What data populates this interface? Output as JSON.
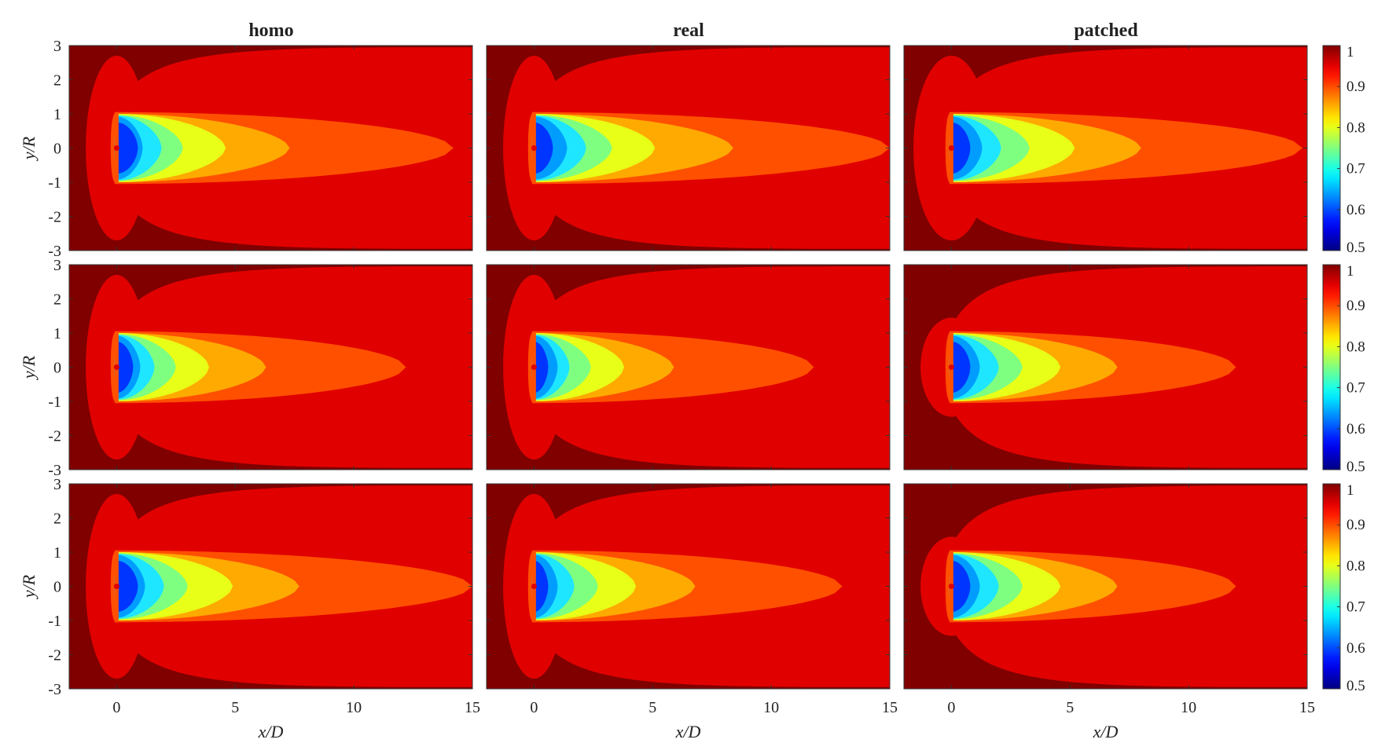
{
  "figure": {
    "columns": [
      {
        "title": "homo"
      },
      {
        "title": "real"
      },
      {
        "title": "patched"
      }
    ],
    "rows": 3
  },
  "chart_data": {
    "type": "heatmap",
    "subtype": "filled-contour",
    "layout": "3x3 panel grid with one colorbar per row",
    "xlabel": "x/D",
    "ylabel": "y/R",
    "xlim": [
      -2,
      15
    ],
    "ylim": [
      -3,
      3
    ],
    "xticks": [
      0,
      5,
      10,
      15
    ],
    "xtick_labels": [
      "0",
      "5",
      "10",
      "15"
    ],
    "yticks": [
      3,
      2,
      1,
      0,
      -1,
      -2,
      -3
    ],
    "ytick_labels": [
      "3",
      "2",
      "1",
      "0",
      "-1",
      "-2",
      "-3"
    ],
    "colorbar": {
      "colormap": "jet",
      "range": [
        0.5,
        1.0
      ],
      "ticks": [
        1,
        0.9,
        0.8,
        0.7,
        0.6,
        0.5
      ],
      "tick_labels": [
        "1",
        "0.9",
        "0.8",
        "0.7",
        "0.6",
        "0.5"
      ]
    },
    "contour_levels": [
      {
        "level": 1.0,
        "color": "#800000"
      },
      {
        "level": 0.97,
        "color": "#e10000"
      },
      {
        "level": 0.94,
        "color": "#ff5000"
      },
      {
        "level": 0.9,
        "color": "#ffaa00"
      },
      {
        "level": 0.86,
        "color": "#e8ff17"
      },
      {
        "level": 0.8,
        "color": "#7fff80"
      },
      {
        "level": 0.74,
        "color": "#1ee6ff"
      },
      {
        "level": 0.68,
        "color": "#009dff"
      },
      {
        "level": 0.62,
        "color": "#0035ff"
      }
    ],
    "panels": [
      {
        "row": 1,
        "column": "homo",
        "contours": [
          {
            "level": 0.97,
            "x_end": 1.0
          },
          {
            "level": 0.94,
            "x_end": 14.2
          },
          {
            "level": 0.9,
            "x_end": 7.3
          },
          {
            "level": 0.86,
            "x_end": 4.6
          },
          {
            "level": 0.8,
            "x_end": 2.8
          },
          {
            "level": 0.74,
            "x_end": 1.9
          },
          {
            "level": 0.68,
            "x_end": 1.1
          },
          {
            "level": 0.62,
            "x_end": 0.9
          }
        ]
      },
      {
        "row": 1,
        "column": "real",
        "contours": [
          {
            "level": 0.94,
            "x_end": 15.0
          },
          {
            "level": 0.9,
            "x_end": 8.4
          },
          {
            "level": 0.86,
            "x_end": 5.1
          },
          {
            "level": 0.8,
            "x_end": 3.3
          },
          {
            "level": 0.74,
            "x_end": 2.2
          },
          {
            "level": 0.68,
            "x_end": 1.4
          },
          {
            "level": 0.62,
            "x_end": 0.8
          }
        ]
      },
      {
        "row": 1,
        "column": "patched",
        "contours": [
          {
            "level": 0.94,
            "x_end": 14.8
          },
          {
            "level": 0.9,
            "x_end": 8.0
          },
          {
            "level": 0.86,
            "x_end": 5.2
          },
          {
            "level": 0.8,
            "x_end": 3.3
          },
          {
            "level": 0.74,
            "x_end": 2.1
          },
          {
            "level": 0.68,
            "x_end": 1.3
          },
          {
            "level": 0.62,
            "x_end": 0.8
          }
        ]
      },
      {
        "row": 2,
        "column": "homo",
        "contours": [
          {
            "level": 0.94,
            "x_end": 12.2
          },
          {
            "level": 0.9,
            "x_end": 6.3
          },
          {
            "level": 0.86,
            "x_end": 3.9
          },
          {
            "level": 0.8,
            "x_end": 2.5
          },
          {
            "level": 0.74,
            "x_end": 1.6
          },
          {
            "level": 0.68,
            "x_end": 1.0
          },
          {
            "level": 0.62,
            "x_end": 0.7
          }
        ]
      },
      {
        "row": 2,
        "column": "real",
        "contours": [
          {
            "level": 0.94,
            "x_end": 11.8
          },
          {
            "level": 0.9,
            "x_end": 5.9
          },
          {
            "level": 0.86,
            "x_end": 3.8
          },
          {
            "level": 0.8,
            "x_end": 2.4
          },
          {
            "level": 0.74,
            "x_end": 1.5
          },
          {
            "level": 0.68,
            "x_end": 1.0
          },
          {
            "level": 0.62,
            "x_end": 0.6
          }
        ]
      },
      {
        "row": 2,
        "column": "patched",
        "contours": [
          {
            "level": 0.94,
            "x_end": 12.0
          },
          {
            "level": 0.9,
            "x_end": 7.0
          },
          {
            "level": 0.86,
            "x_end": 4.6
          },
          {
            "level": 0.8,
            "x_end": 3.0
          },
          {
            "level": 0.74,
            "x_end": 2.0
          },
          {
            "level": 0.68,
            "x_end": 1.2
          },
          {
            "level": 0.62,
            "x_end": 0.8
          }
        ]
      },
      {
        "row": 3,
        "column": "homo",
        "contours": [
          {
            "level": 0.94,
            "x_end": 15.0
          },
          {
            "level": 0.9,
            "x_end": 7.7
          },
          {
            "level": 0.86,
            "x_end": 4.9
          },
          {
            "level": 0.8,
            "x_end": 3.0
          },
          {
            "level": 0.74,
            "x_end": 2.0
          },
          {
            "level": 0.68,
            "x_end": 1.2
          },
          {
            "level": 0.62,
            "x_end": 0.9
          }
        ]
      },
      {
        "row": 3,
        "column": "real",
        "contours": [
          {
            "level": 0.94,
            "x_end": 13.0
          },
          {
            "level": 0.9,
            "x_end": 6.8
          },
          {
            "level": 0.86,
            "x_end": 4.3
          },
          {
            "level": 0.8,
            "x_end": 2.7
          },
          {
            "level": 0.74,
            "x_end": 1.7
          },
          {
            "level": 0.68,
            "x_end": 1.0
          },
          {
            "level": 0.62,
            "x_end": 0.6
          }
        ]
      },
      {
        "row": 3,
        "column": "patched",
        "contours": [
          {
            "level": 0.94,
            "x_end": 12.0
          },
          {
            "level": 0.9,
            "x_end": 7.0
          },
          {
            "level": 0.86,
            "x_end": 4.6
          },
          {
            "level": 0.8,
            "x_end": 3.0
          },
          {
            "level": 0.74,
            "x_end": 2.0
          },
          {
            "level": 0.68,
            "x_end": 1.2
          },
          {
            "level": 0.62,
            "x_end": 0.8
          }
        ]
      }
    ]
  }
}
